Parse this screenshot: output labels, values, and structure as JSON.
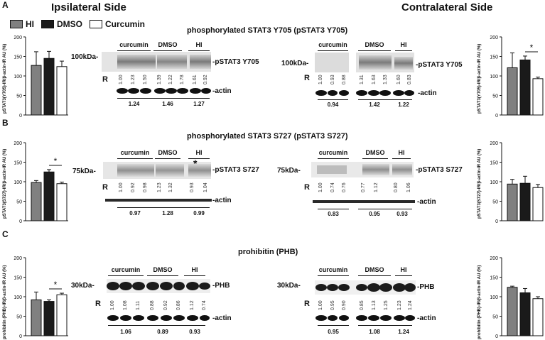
{
  "header": {
    "left_side": "Ipsilateral Side",
    "right_side": "Contralateral Side"
  },
  "legend": {
    "items": [
      {
        "label": "HI",
        "color": "#808080"
      },
      {
        "label": "DMSO",
        "color": "#1a1a1a"
      },
      {
        "label": "Curcumin",
        "color": "#ffffff"
      }
    ]
  },
  "panels": [
    {
      "letter": "A",
      "title": "phosphorylated STAT3 Y705 (pSTAT3 Y705)",
      "ipsi_ylabel": "pSTAT3(Y705)-IR/β-actin-IR AU (%)",
      "contra_ylabel": "pSTAT3(Y705)-IR/β-actin-IR AU (%)",
      "ipsi_kda": "100kDa-",
      "contra_kda": "100kDa-",
      "protein_label": "-pSTAT3 Y705",
      "actin_label": "-actin",
      "groups": [
        "curcumin",
        "DMSO",
        "HI"
      ],
      "ipsi_R": [
        "1.00",
        "1.23",
        "1.50",
        "1.39",
        "1.22",
        "1.78",
        "1.61",
        "0.92"
      ],
      "contra_R": [
        "1.00",
        "0.93",
        "0.88",
        "1.31",
        "1.63",
        "1.33",
        "1.60",
        "0.83"
      ],
      "ipsi_ratios": [
        "1.24",
        "1.46",
        "1.27"
      ],
      "contra_ratios": [
        "0.94",
        "1.42",
        "1.22"
      ]
    },
    {
      "letter": "B",
      "title": "phosphorylated STAT3 S727 (pSTAT3 S727)",
      "ipsi_ylabel": "pSTAT3(S727)-IR/β-actin-IR AU (%)",
      "contra_ylabel": "pSTAT3(S727)-IR/β-actin-IR AU (%)",
      "ipsi_kda": "75kDa-",
      "contra_kda": "75kDa-",
      "protein_label": "-pSTAT3 S727",
      "actin_label": "-actin",
      "groups": [
        "curcumin",
        "DMSO",
        "HI"
      ],
      "ipsi_R": [
        "1.00",
        "0.92",
        "0.98",
        "1.23",
        "1.32",
        "0.93",
        "1.04"
      ],
      "contra_R": [
        "1.00",
        "0.74",
        "0.76",
        "0.77",
        "1.12",
        "0.80",
        "1.06"
      ],
      "ipsi_ratios": [
        "0.97",
        "1.28",
        "0.99"
      ],
      "contra_ratios": [
        "0.83",
        "0.95",
        "0.93"
      ],
      "ipsi_star": "*"
    },
    {
      "letter": "C",
      "title": "prohibitin (PHB)",
      "ipsi_ylabel": "prohibitin (PHB)-IR/β-actin-IR AU (%)",
      "contra_ylabel": "prohibitin (PHB)-IR/β-actin-IR AU (%)",
      "ipsi_kda": "30kDa-",
      "contra_kda": "30kDa-",
      "protein_label": "-PHB",
      "actin_label": "-actin",
      "groups": [
        "curcumin",
        "DMSO",
        "HI"
      ],
      "ipsi_R": [
        "1.00",
        "1.08",
        "1.11",
        "0.88",
        "0.92",
        "0.86",
        "1.12",
        "0.74"
      ],
      "contra_R": [
        "1.00",
        "0.95",
        "0.90",
        "0.85",
        "1.13",
        "1.25",
        "1.23",
        "1.24"
      ],
      "ipsi_ratios": [
        "1.06",
        "0.89",
        "0.93"
      ],
      "contra_ratios": [
        "0.95",
        "1.08",
        "1.24"
      ]
    }
  ],
  "R_label": "R",
  "chart_data": [
    {
      "type": "bar",
      "panel": "A-ipsilateral",
      "categories": [
        "HI",
        "DMSO",
        "Curcumin"
      ],
      "values": [
        127,
        145,
        124
      ],
      "errors": [
        35,
        18,
        14
      ],
      "ylim": [
        0,
        200
      ],
      "yticks": [
        0,
        50,
        100,
        150,
        200
      ],
      "significance": ""
    },
    {
      "type": "bar",
      "panel": "A-contralateral",
      "categories": [
        "HI",
        "DMSO",
        "Curcumin"
      ],
      "values": [
        121,
        141,
        93
      ],
      "errors": [
        38,
        10,
        4
      ],
      "ylim": [
        0,
        200
      ],
      "yticks": [
        0,
        50,
        100,
        150,
        200
      ],
      "significance": "*"
    },
    {
      "type": "bar",
      "panel": "B-ipsilateral",
      "categories": [
        "HI",
        "DMSO",
        "Curcumin"
      ],
      "values": [
        98,
        125,
        95
      ],
      "errors": [
        5,
        6,
        4
      ],
      "ylim": [
        0,
        200
      ],
      "yticks": [
        0,
        50,
        100,
        150,
        200
      ],
      "significance": "*"
    },
    {
      "type": "bar",
      "panel": "B-contralateral",
      "categories": [
        "HI",
        "DMSO",
        "Curcumin"
      ],
      "values": [
        94,
        96,
        85
      ],
      "errors": [
        12,
        18,
        8
      ],
      "ylim": [
        0,
        200
      ],
      "yticks": [
        0,
        50,
        100,
        150,
        200
      ],
      "significance": ""
    },
    {
      "type": "bar",
      "panel": "C-ipsilateral",
      "categories": [
        "HI",
        "DMSO",
        "Curcumin"
      ],
      "values": [
        92,
        88,
        105
      ],
      "errors": [
        20,
        4,
        4
      ],
      "ylim": [
        0,
        200
      ],
      "yticks": [
        0,
        50,
        100,
        150,
        200
      ],
      "significance": "*"
    },
    {
      "type": "bar",
      "panel": "C-contralateral",
      "categories": [
        "HI",
        "DMSO",
        "Curcumin"
      ],
      "values": [
        124,
        110,
        95
      ],
      "errors": [
        3,
        11,
        5
      ],
      "ylim": [
        0,
        200
      ],
      "yticks": [
        0,
        50,
        100,
        150,
        200
      ],
      "significance": ""
    }
  ]
}
